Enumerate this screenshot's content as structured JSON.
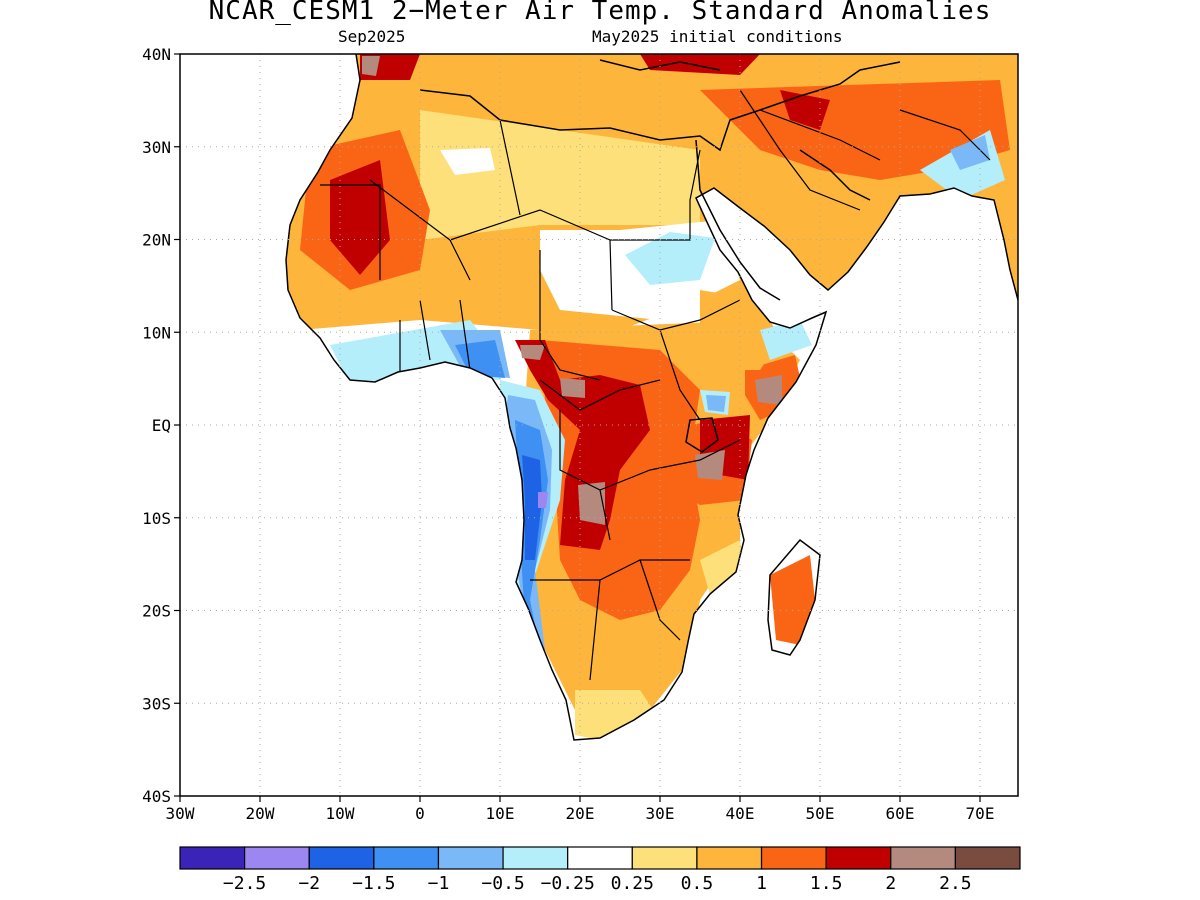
{
  "header": {
    "title": "NCAR_CESM1 2−Meter Air Temp. Standard Anomalies",
    "valid_month": "Sep2025",
    "init_conditions": "May2025 initial conditions"
  },
  "map": {
    "region": "Africa",
    "lat_labels": [
      "40N",
      "30N",
      "20N",
      "10N",
      "EQ",
      "10S",
      "20S",
      "30S",
      "40S"
    ],
    "lon_labels": [
      "30W",
      "20W",
      "10W",
      "0",
      "10E",
      "20E",
      "30E",
      "40E",
      "50E",
      "60E",
      "70E"
    ]
  },
  "colorbar": {
    "labels": [
      "−2.5",
      "−2",
      "−1.5",
      "−1",
      "−0.5",
      "−0.25",
      "0.25",
      "0.5",
      "1",
      "1.5",
      "2",
      "2.5"
    ],
    "colors": [
      "#3a24b8",
      "#9b86f2",
      "#1e62e6",
      "#3e90f2",
      "#7ab8f7",
      "#b4eefa",
      "#ffffff",
      "#fde07a",
      "#fdb53c",
      "#fa6515",
      "#c00000",
      "#b58a7e",
      "#7a4c40"
    ]
  },
  "anomaly_colors": {
    "light_yellow": "#fde07a",
    "orange": "#fdb53c",
    "dark_orange": "#fa6515",
    "red": "#c00000",
    "brown": "#b58a7e",
    "light_blue": "#b4eefa",
    "sky_blue": "#7ab8f7",
    "mid_blue": "#3e90f2",
    "blue": "#1e62e6",
    "purple": "#9b86f2"
  }
}
